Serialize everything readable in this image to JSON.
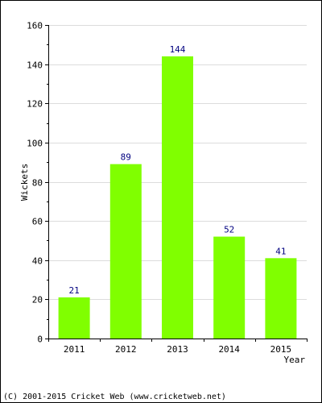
{
  "chart_data": {
    "type": "bar",
    "title": "",
    "xlabel": "Year",
    "ylabel": "Wickets",
    "categories": [
      "2011",
      "2012",
      "2013",
      "2014",
      "2015"
    ],
    "values": [
      21,
      89,
      144,
      52,
      41
    ],
    "data_labels": [
      "21",
      "89",
      "144",
      "52",
      "41"
    ],
    "ylim": [
      0,
      160
    ],
    "yticks": [
      0,
      20,
      40,
      60,
      80,
      100,
      120,
      140,
      160
    ],
    "grid": true,
    "legend": "none",
    "bar_color": "#80ff00",
    "label_color": "#000080"
  },
  "footer": {
    "copyright": "(C) 2001-2015 Cricket Web (www.cricketweb.net)"
  }
}
